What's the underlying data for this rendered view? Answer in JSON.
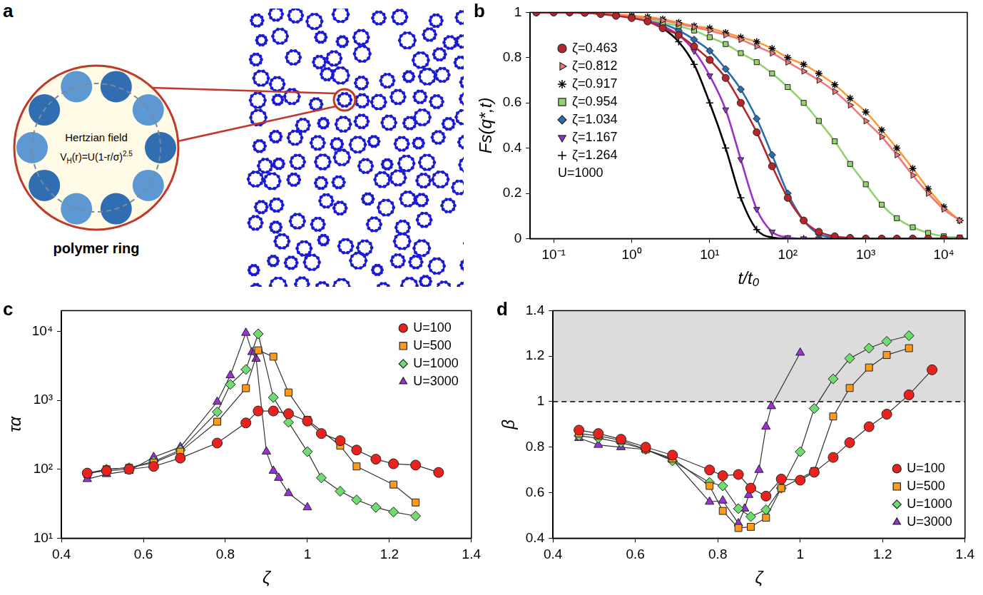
{
  "diagram": {
    "panel_label": "a",
    "field_label": "Hertzian field",
    "formula": {
      "base": "V",
      "sub": "H",
      "main": "(r)=U(1-r/σ)",
      "sup": "2.5"
    },
    "caption": "polymer ring"
  },
  "chart_data": [
    {
      "panel_label": "b",
      "type": "line",
      "x_label": "t/t₀",
      "y_label": "Fs(q*,t)",
      "log": "x",
      "grid": false,
      "legend": "left",
      "annotations": [
        "U=1000"
      ],
      "xlim": [
        0.05,
        20000
      ],
      "xticks": [
        {
          "value": 0.1,
          "label": "10⁻¹"
        },
        {
          "value": 1,
          "label": "10⁰"
        },
        {
          "value": 10,
          "label": "10¹"
        },
        {
          "value": 100,
          "label": "10²"
        },
        {
          "value": 1000,
          "label": "10³"
        },
        {
          "value": 10000,
          "label": "10⁴"
        }
      ],
      "ylim": [
        0,
        1
      ],
      "yticks": [
        0,
        0.2,
        0.4,
        0.6,
        0.8,
        1
      ],
      "x": [
        0.06,
        0.1,
        0.16,
        0.25,
        0.4,
        0.63,
        1,
        1.6,
        2.5,
        4,
        6.3,
        10,
        16,
        25,
        40,
        63,
        100,
        160,
        250,
        400,
        630,
        1000,
        1600,
        2500,
        4000,
        6300,
        10000,
        16000
      ],
      "series": [
        {
          "name": "ζ=0.463",
          "color": "#b5252b",
          "marker": "circle",
          "values": [
            1,
            1,
            1,
            0.998,
            0.993,
            0.985,
            0.975,
            0.96,
            0.93,
            0.9,
            0.85,
            0.79,
            0.71,
            0.6,
            0.47,
            0.32,
            0.18,
            0.08,
            0.03,
            0.01,
            0.003,
            0,
            0,
            0,
            0,
            0,
            0,
            0
          ]
        },
        {
          "name": "ζ=0.812",
          "color": "#f07878",
          "marker": "triangle-right",
          "values": [
            1,
            1,
            1,
            0.998,
            0.996,
            0.99,
            0.98,
            0.975,
            0.965,
            0.95,
            0.935,
            0.92,
            0.9,
            0.88,
            0.85,
            0.82,
            0.78,
            0.74,
            0.7,
            0.65,
            0.59,
            0.52,
            0.45,
            0.37,
            0.28,
            0.2,
            0.13,
            0.08
          ]
        },
        {
          "name": "ζ=0.917",
          "color": "#ff9a30",
          "marker": "star",
          "values": [
            1,
            1,
            1,
            0.999,
            0.997,
            0.992,
            0.985,
            0.98,
            0.97,
            0.955,
            0.94,
            0.93,
            0.91,
            0.89,
            0.87,
            0.84,
            0.8,
            0.77,
            0.73,
            0.68,
            0.62,
            0.56,
            0.48,
            0.4,
            0.31,
            0.22,
            0.14,
            0.08
          ]
        },
        {
          "name": "ζ=0.954",
          "color": "#93d36e",
          "marker": "square",
          "values": [
            1,
            1,
            1,
            0.998,
            0.995,
            0.99,
            0.98,
            0.97,
            0.955,
            0.94,
            0.92,
            0.89,
            0.86,
            0.82,
            0.78,
            0.73,
            0.67,
            0.6,
            0.52,
            0.43,
            0.33,
            0.24,
            0.15,
            0.09,
            0.05,
            0.025,
            0.01,
            0.005
          ]
        },
        {
          "name": "ζ=1.034",
          "color": "#2b6cb0",
          "marker": "diamond",
          "values": [
            1,
            1,
            1,
            0.998,
            0.995,
            0.99,
            0.98,
            0.97,
            0.95,
            0.92,
            0.88,
            0.83,
            0.75,
            0.66,
            0.53,
            0.37,
            0.2,
            0.08,
            0.02,
            0.005,
            0,
            0,
            0,
            0,
            0,
            0,
            0,
            0
          ]
        },
        {
          "name": "ζ=1.167",
          "color": "#9b30c8",
          "marker": "triangle-down",
          "values": [
            1,
            1,
            1,
            0.998,
            0.995,
            0.99,
            0.98,
            0.965,
            0.94,
            0.9,
            0.83,
            0.72,
            0.57,
            0.35,
            0.13,
            0.03,
            0.005,
            0,
            0,
            0,
            0,
            0,
            0,
            0,
            0,
            0,
            0,
            0
          ]
        },
        {
          "name": "ζ=1.264",
          "color": "#000000",
          "marker": "plus",
          "values": [
            1,
            1,
            1,
            0.998,
            0.995,
            0.99,
            0.98,
            0.96,
            0.93,
            0.87,
            0.77,
            0.6,
            0.4,
            0.18,
            0.04,
            0.005,
            0,
            0,
            0,
            0,
            0,
            0,
            0,
            0,
            0,
            0,
            0,
            0
          ]
        }
      ]
    },
    {
      "panel_label": "c",
      "type": "line",
      "x_label": "ζ",
      "y_label": "τα",
      "log": "y",
      "grid": false,
      "legend": "upper right",
      "xlim": [
        0.4,
        1.4
      ],
      "xticks": [
        0.4,
        0.6,
        0.8,
        1,
        1.2,
        1.4
      ],
      "ylim": [
        10,
        20000
      ],
      "yticks": [
        {
          "value": 10,
          "label": "10¹"
        },
        {
          "value": 100,
          "label": "10²"
        },
        {
          "value": 1000,
          "label": "10³"
        },
        {
          "value": 10000,
          "label": "10⁴"
        }
      ],
      "series": [
        {
          "name": "U=100",
          "color": "#e8231e",
          "marker": "circle",
          "x": [
            0.463,
            0.51,
            0.565,
            0.625,
            0.69,
            0.78,
            0.85,
            0.88,
            0.917,
            0.954,
            1.0,
            1.034,
            1.08,
            1.12,
            1.167,
            1.21,
            1.264,
            1.32
          ],
          "values": [
            88,
            95,
            100,
            110,
            145,
            240,
            470,
            700,
            700,
            640,
            500,
            330,
            260,
            190,
            140,
            120,
            115,
            90
          ]
        },
        {
          "name": "U=500",
          "color": "#ff9a1a",
          "marker": "square",
          "x": [
            0.463,
            0.51,
            0.565,
            0.625,
            0.69,
            0.78,
            0.85,
            0.88,
            0.917,
            0.954,
            1.0,
            1.08,
            1.12,
            1.21,
            1.264
          ],
          "values": [
            85,
            100,
            105,
            125,
            180,
            490,
            1500,
            5300,
            4300,
            1300,
            520,
            220,
            110,
            60,
            33
          ]
        },
        {
          "name": "U=1000",
          "color": "#6edc6e",
          "marker": "diamond",
          "x": [
            0.463,
            0.51,
            0.565,
            0.625,
            0.69,
            0.78,
            0.812,
            0.85,
            0.88,
            0.917,
            0.954,
            1.0,
            1.034,
            1.08,
            1.12,
            1.167,
            1.21,
            1.264
          ],
          "values": [
            88,
            100,
            105,
            130,
            190,
            680,
            1700,
            2800,
            9200,
            1100,
            480,
            180,
            75,
            48,
            36,
            28,
            24,
            21
          ]
        },
        {
          "name": "U=3000",
          "color": "#9b30d9",
          "marker": "triangle-up",
          "x": [
            0.463,
            0.51,
            0.565,
            0.625,
            0.69,
            0.78,
            0.812,
            0.85,
            0.865,
            0.875,
            0.9,
            0.917,
            0.93,
            0.954,
            1.0
          ],
          "values": [
            72,
            85,
            95,
            150,
            210,
            950,
            2300,
            9500,
            5000,
            4000,
            180,
            95,
            75,
            45,
            28
          ]
        }
      ]
    },
    {
      "panel_label": "d",
      "type": "line",
      "x_label": "ζ",
      "y_label": "β",
      "grid": false,
      "legend": "lower right",
      "reference_line": 1,
      "xlim": [
        0.4,
        1.4
      ],
      "xticks": [
        0.4,
        0.6,
        0.8,
        1,
        1.2,
        1.4
      ],
      "ylim": [
        0.4,
        1.4
      ],
      "yticks": [
        0.4,
        0.6,
        0.8,
        1,
        1.2,
        1.4
      ],
      "series": [
        {
          "name": "U=100",
          "color": "#e8231e",
          "marker": "circle",
          "x": [
            0.463,
            0.51,
            0.565,
            0.625,
            0.69,
            0.78,
            0.812,
            0.85,
            0.88,
            0.917,
            0.954,
            1.0,
            1.034,
            1.08,
            1.12,
            1.167,
            1.21,
            1.264,
            1.32
          ],
          "values": [
            0.875,
            0.86,
            0.835,
            0.8,
            0.765,
            0.7,
            0.675,
            0.68,
            0.62,
            0.585,
            0.66,
            0.655,
            0.69,
            0.755,
            0.82,
            0.89,
            0.945,
            1.03,
            1.14
          ]
        },
        {
          "name": "U=500",
          "color": "#ff9a1a",
          "marker": "square",
          "x": [
            0.463,
            0.51,
            0.565,
            0.625,
            0.69,
            0.78,
            0.812,
            0.85,
            0.88,
            0.917,
            0.954,
            1.034,
            1.08,
            1.12,
            1.167,
            1.21,
            1.264
          ],
          "values": [
            0.86,
            0.85,
            0.83,
            0.79,
            0.75,
            0.63,
            0.52,
            0.445,
            0.45,
            0.49,
            0.62,
            0.695,
            0.935,
            1.06,
            1.15,
            1.205,
            1.235
          ]
        },
        {
          "name": "U=1000",
          "color": "#6edc6e",
          "marker": "diamond",
          "x": [
            0.463,
            0.51,
            0.565,
            0.625,
            0.69,
            0.78,
            0.812,
            0.85,
            0.88,
            0.917,
            0.954,
            1.0,
            1.034,
            1.08,
            1.12,
            1.167,
            1.21,
            1.264
          ],
          "values": [
            0.85,
            0.84,
            0.82,
            0.79,
            0.74,
            0.645,
            0.63,
            0.53,
            0.495,
            0.525,
            0.62,
            0.78,
            0.97,
            1.1,
            1.19,
            1.235,
            1.265,
            1.29
          ]
        },
        {
          "name": "U=3000",
          "color": "#9b30d9",
          "marker": "triangle-up",
          "x": [
            0.463,
            0.51,
            0.565,
            0.625,
            0.69,
            0.78,
            0.812,
            0.85,
            0.865,
            0.875,
            0.9,
            0.917,
            0.93,
            1.0
          ],
          "values": [
            0.84,
            0.81,
            0.8,
            0.79,
            0.745,
            0.56,
            0.565,
            0.465,
            0.53,
            0.59,
            0.7,
            0.89,
            0.98,
            1.215
          ]
        }
      ]
    }
  ]
}
